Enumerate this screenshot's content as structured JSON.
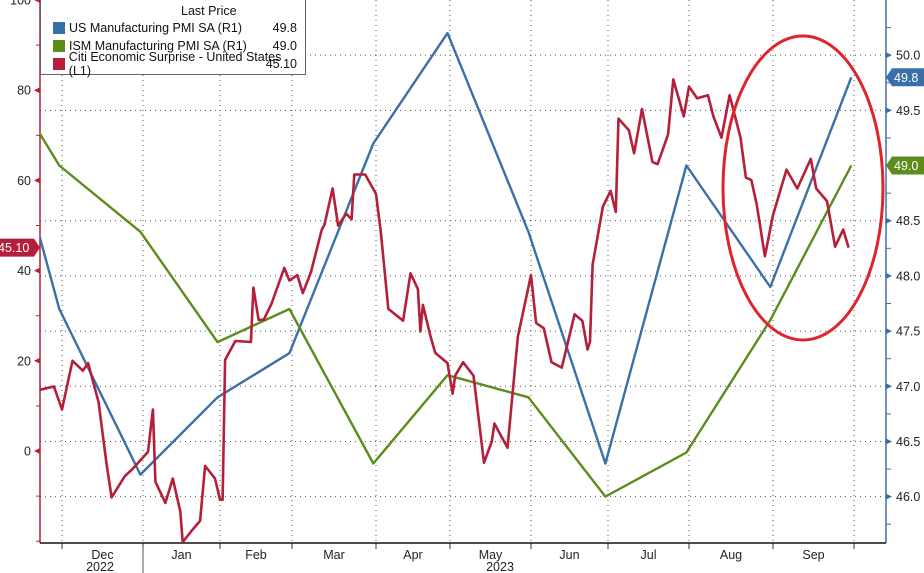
{
  "legend": {
    "title": "Last Price",
    "entries": [
      {
        "label": "US Manufacturing PMI SA  (R1)",
        "value": "49.8",
        "color": "#3a70a8"
      },
      {
        "label": "ISM Manufacturing PMI SA  (R1)",
        "value": "49.0",
        "color": "#5b8c1c"
      },
      {
        "label": "Citi Economic Surprise - United States  (L1)",
        "value": "45.10",
        "color": "#b51f3a"
      }
    ]
  },
  "annotation": {
    "shape": "ellipse",
    "color": "#e0242b"
  },
  "chart_data": {
    "type": "line",
    "x_axis": {
      "type": "date",
      "months": [
        "Dec",
        "Jan",
        "Feb",
        "Mar",
        "Apr",
        "May",
        "Jun",
        "Jul",
        "Aug",
        "Sep"
      ],
      "years": [
        "2022",
        "2023"
      ]
    },
    "left_axis": {
      "ticks": [
        100,
        80,
        60,
        40,
        20,
        0
      ],
      "ylim": [
        -20.4,
        100
      ]
    },
    "right_axis": {
      "ticks": [
        "50.0",
        "49.5",
        "48.5",
        "48.0",
        "47.5",
        "47.0",
        "46.5",
        "46.0"
      ],
      "ylim": [
        45.58,
        50.5
      ]
    },
    "grid": true,
    "legend_position": "top-left",
    "last_labels": {
      "left": "45.10",
      "right_blue": "49.8",
      "right_green": "49.0"
    },
    "series": [
      {
        "name": "US Manufacturing PMI SA  (R1)",
        "axis": "right",
        "color": "#3a70a8",
        "points": [
          [
            "2022-10-31",
            50.4
          ],
          [
            "2022-11-30",
            47.7
          ],
          [
            "2022-12-31",
            46.2
          ],
          [
            "2023-01-31",
            46.9
          ],
          [
            "2023-02-28",
            47.3
          ],
          [
            "2023-03-31",
            49.2
          ],
          [
            "2023-04-30",
            50.2
          ],
          [
            "2023-05-31",
            48.4
          ],
          [
            "2023-06-30",
            46.3
          ],
          [
            "2023-07-31",
            49.0
          ],
          [
            "2023-08-31",
            47.9
          ],
          [
            "2023-09-30",
            49.8
          ]
        ]
      },
      {
        "name": "ISM Manufacturing PMI SA  (R1)",
        "axis": "right",
        "color": "#5b8c1c",
        "points": [
          [
            "2022-10-31",
            50.2
          ],
          [
            "2022-11-30",
            49.0
          ],
          [
            "2022-12-31",
            48.4
          ],
          [
            "2023-01-31",
            47.4
          ],
          [
            "2023-02-28",
            47.7
          ],
          [
            "2023-03-31",
            46.3
          ],
          [
            "2023-04-30",
            47.1
          ],
          [
            "2023-05-31",
            46.9
          ],
          [
            "2023-06-30",
            46.0
          ],
          [
            "2023-07-31",
            46.4
          ],
          [
            "2023-08-31",
            47.6
          ],
          [
            "2023-09-30",
            49.0
          ]
        ]
      },
      {
        "name": "Citi Economic Surprise - United States  (L1)",
        "axis": "left",
        "color": "#b51f3a",
        "points": [
          [
            "2022-11-23",
            13.6
          ],
          [
            "2022-11-28",
            14.3
          ],
          [
            "2022-12-01",
            9.2
          ],
          [
            "2022-12-05",
            20
          ],
          [
            "2022-12-09",
            17.8
          ],
          [
            "2022-12-11",
            19.5
          ],
          [
            "2022-12-15",
            10.8
          ],
          [
            "2022-12-18",
            -2.6
          ],
          [
            "2022-12-20",
            -10.3
          ],
          [
            "2022-12-25",
            -5.6
          ],
          [
            "2022-12-28",
            -4
          ],
          [
            "2023-01-03",
            -0.2
          ],
          [
            "2023-01-05",
            9.2
          ],
          [
            "2023-01-06",
            -6.8
          ],
          [
            "2023-01-10",
            -11.5
          ],
          [
            "2023-01-13",
            -6.1
          ],
          [
            "2023-01-16",
            -13.4
          ],
          [
            "2023-01-17",
            -20.2
          ],
          [
            "2023-01-21",
            -17.4
          ],
          [
            "2023-01-24",
            -15.5
          ],
          [
            "2023-01-26",
            -3.3
          ],
          [
            "2023-01-30",
            -6.1
          ],
          [
            "2023-02-01",
            -10.8
          ],
          [
            "2023-02-02",
            -10.8
          ],
          [
            "2023-02-03",
            20.2
          ],
          [
            "2023-02-07",
            24.4
          ],
          [
            "2023-02-13",
            24.2
          ],
          [
            "2023-02-14",
            36.2
          ],
          [
            "2023-02-16",
            29.1
          ],
          [
            "2023-02-18",
            29.1
          ],
          [
            "2023-02-21",
            32.6
          ],
          [
            "2023-02-26",
            40.6
          ],
          [
            "2023-02-28",
            37.8
          ],
          [
            "2023-03-03",
            39
          ],
          [
            "2023-03-05",
            35
          ],
          [
            "2023-03-08",
            39.7
          ],
          [
            "2023-03-12",
            49.1
          ],
          [
            "2023-03-13",
            50.2
          ],
          [
            "2023-03-16",
            58.2
          ],
          [
            "2023-03-18",
            50
          ],
          [
            "2023-03-21",
            52.6
          ],
          [
            "2023-03-23",
            51.4
          ],
          [
            "2023-03-24",
            61.3
          ],
          [
            "2023-03-28",
            61.3
          ],
          [
            "2023-04-01",
            57
          ],
          [
            "2023-04-03",
            48.4
          ],
          [
            "2023-04-06",
            31.5
          ],
          [
            "2023-04-12",
            28.9
          ],
          [
            "2023-04-15",
            39.4
          ],
          [
            "2023-04-18",
            35.9
          ],
          [
            "2023-04-19",
            26.5
          ],
          [
            "2023-04-20",
            32.4
          ],
          [
            "2023-04-23",
            25.6
          ],
          [
            "2023-04-25",
            21.8
          ],
          [
            "2023-04-30",
            19.5
          ],
          [
            "2023-05-02",
            12.7
          ],
          [
            "2023-05-03",
            16.7
          ],
          [
            "2023-05-06",
            19.7
          ],
          [
            "2023-05-10",
            16.7
          ],
          [
            "2023-05-14",
            -2.6
          ],
          [
            "2023-05-17",
            2.1
          ],
          [
            "2023-05-18",
            6.1
          ],
          [
            "2023-05-23",
            0.7
          ],
          [
            "2023-05-27",
            25.4
          ],
          [
            "2023-06-01",
            39
          ],
          [
            "2023-06-03",
            28.4
          ],
          [
            "2023-06-06",
            27.2
          ],
          [
            "2023-06-09",
            19.7
          ],
          [
            "2023-06-13",
            18.5
          ],
          [
            "2023-06-18",
            30.3
          ],
          [
            "2023-06-21",
            28.9
          ],
          [
            "2023-06-23",
            22.5
          ],
          [
            "2023-06-24",
            24.2
          ],
          [
            "2023-06-25",
            41.3
          ],
          [
            "2023-06-29",
            54.2
          ],
          [
            "2023-07-02",
            57.7
          ],
          [
            "2023-07-04",
            53
          ],
          [
            "2023-07-05",
            73.7
          ],
          [
            "2023-07-09",
            71.1
          ],
          [
            "2023-07-11",
            66
          ],
          [
            "2023-07-14",
            75.8
          ],
          [
            "2023-07-18",
            64.1
          ],
          [
            "2023-07-20",
            63.6
          ],
          [
            "2023-07-24",
            70.2
          ],
          [
            "2023-07-26",
            82.4
          ],
          [
            "2023-07-30",
            74.2
          ],
          [
            "2023-08-01",
            80.8
          ],
          [
            "2023-08-04",
            78.2
          ],
          [
            "2023-08-08",
            78.9
          ],
          [
            "2023-08-10",
            74.2
          ],
          [
            "2023-08-13",
            69.5
          ],
          [
            "2023-08-16",
            78.9
          ],
          [
            "2023-08-20",
            69.5
          ],
          [
            "2023-08-22",
            60.6
          ],
          [
            "2023-08-24",
            60.1
          ],
          [
            "2023-08-26",
            54.7
          ],
          [
            "2023-08-29",
            43.2
          ],
          [
            "2023-09-01",
            52.3
          ],
          [
            "2023-09-06",
            62.4
          ],
          [
            "2023-09-10",
            58.2
          ],
          [
            "2023-09-15",
            64.8
          ],
          [
            "2023-09-17",
            58.2
          ],
          [
            "2023-09-21",
            55.4
          ],
          [
            "2023-09-24",
            45.3
          ],
          [
            "2023-09-27",
            49.1
          ],
          [
            "2023-09-29",
            45.1
          ]
        ]
      }
    ]
  }
}
